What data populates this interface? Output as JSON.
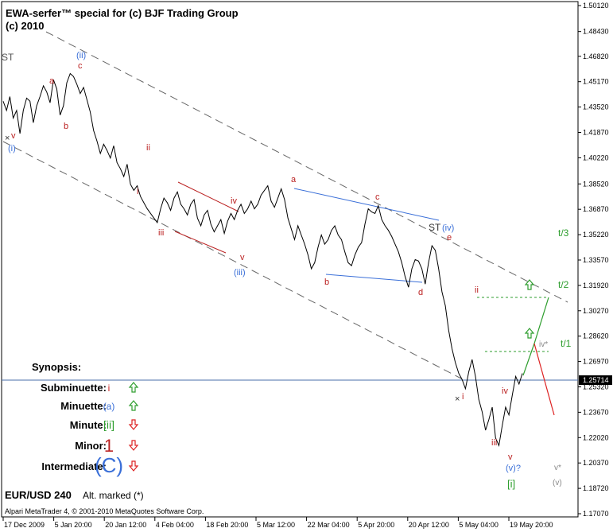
{
  "header": {
    "title_line1": "EWA-serfer™ special for (c) BJF Trading Group",
    "title_line2": "(c) 2010"
  },
  "footer": {
    "instrument": "EUR/USD 240",
    "alt_marked": "Alt. marked (*)",
    "copyright": "Alpari MetaTrader 4, © 2001-2010 MetaQuotes Software Corp."
  },
  "synopsis": {
    "heading": "Synopsis:",
    "rows": [
      {
        "label": "Subminuette:",
        "symbol": "i",
        "symbol_color": "#cc2222",
        "arrow": "up",
        "arrow_color": "#2e9e2e"
      },
      {
        "label": "Minuette:",
        "symbol": "(a)",
        "symbol_color": "#3a6fd8",
        "arrow": "up",
        "arrow_color": "#2e9e2e"
      },
      {
        "label": "Minute:",
        "symbol": "[ii]",
        "symbol_color": "#2e9e2e",
        "arrow": "down",
        "arrow_color": "#dd2222"
      },
      {
        "label": "Minor:",
        "symbol": "1",
        "symbol_color": "#bb2222",
        "arrow": "down",
        "arrow_color": "#dd2222"
      },
      {
        "label": "Intermediate:",
        "symbol": "(C)",
        "symbol_color": "#3a6fd8",
        "arrow": "down",
        "arrow_color": "#dd2222"
      }
    ]
  },
  "chart_data": {
    "type": "line",
    "series": [
      {
        "values": [
          1.439,
          1.433,
          1.442,
          1.428,
          1.433,
          1.418,
          1.433,
          1.441,
          1.439,
          1.425,
          1.436,
          1.442,
          1.449,
          1.445,
          1.438,
          1.453,
          1.447,
          1.43,
          1.436,
          1.451,
          1.457,
          1.455,
          1.45,
          1.444,
          1.448,
          1.44,
          1.432,
          1.42,
          1.413,
          1.405,
          1.411,
          1.407,
          1.402,
          1.41,
          1.399,
          1.395,
          1.39,
          1.398,
          1.385,
          1.381,
          1.384,
          1.377,
          1.373,
          1.369,
          1.366,
          1.363,
          1.36,
          1.369,
          1.376,
          1.373,
          1.368,
          1.376,
          1.38,
          1.372,
          1.369,
          1.365,
          1.372,
          1.375,
          1.363,
          1.358,
          1.365,
          1.368,
          1.359,
          1.354,
          1.358,
          1.362,
          1.353,
          1.361,
          1.366,
          1.362,
          1.368,
          1.372,
          1.366,
          1.369,
          1.374,
          1.369,
          1.372,
          1.378,
          1.381,
          1.384,
          1.374,
          1.37,
          1.376,
          1.382,
          1.375,
          1.363,
          1.356,
          1.349,
          1.358,
          1.352,
          1.346,
          1.339,
          1.33,
          1.334,
          1.344,
          1.352,
          1.346,
          1.349,
          1.355,
          1.358,
          1.352,
          1.349,
          1.341,
          1.334,
          1.332,
          1.339,
          1.344,
          1.347,
          1.359,
          1.369,
          1.367,
          1.366,
          1.371,
          1.362,
          1.358,
          1.355,
          1.351,
          1.346,
          1.341,
          1.334,
          1.325,
          1.318,
          1.33,
          1.336,
          1.335,
          1.33,
          1.32,
          1.334,
          1.345,
          1.342,
          1.33,
          1.315,
          1.306,
          1.29,
          1.278,
          1.269,
          1.262,
          1.258,
          1.252,
          1.263,
          1.271,
          1.26,
          1.245,
          1.237,
          1.225,
          1.232,
          1.24,
          1.22,
          1.215,
          1.228,
          1.24,
          1.235,
          1.248,
          1.26,
          1.255,
          1.262
        ]
      }
    ],
    "x_labels": [
      "17 Dec 2009",
      "5 Jan 20:00",
      "20 Jan 12:00",
      "4 Feb 04:00",
      "18 Feb 20:00",
      "5 Mar 12:00",
      "22 Mar 04:00",
      "5 Apr 20:00",
      "20 Apr 12:00",
      "5 May 04:00",
      "19 May 20:00"
    ],
    "y_ticks": [
      "1.50120",
      "1.48430",
      "1.46820",
      "1.45170",
      "1.43520",
      "1.41870",
      "1.40220",
      "1.38520",
      "1.36870",
      "1.35220",
      "1.33570",
      "1.31920",
      "1.30270",
      "1.28620",
      "1.26970",
      "1.25320",
      "1.23670",
      "1.22020",
      "1.20370",
      "1.18720",
      "1.17070"
    ],
    "ylim": [
      1.1707,
      1.5012
    ],
    "last_price": "1.25714",
    "last_value": 1.25714,
    "annotations": {
      "wave_labels_red": [
        "a",
        "b",
        "c",
        "ii",
        "i",
        "iii",
        "iv",
        "v",
        "a",
        "b",
        "c",
        "d",
        "e",
        "ii",
        "iii",
        "iv",
        "v",
        "i"
      ],
      "wave_labels_blue": [
        "(ii)",
        "(i)",
        "(iii)",
        "(iv)",
        "(v)?"
      ],
      "wave_label_green": "[i]",
      "gray_labels": [
        "ST",
        "ST",
        "iv*",
        "v*",
        "(v)"
      ],
      "targets": [
        "t/3",
        "t/2",
        "t/1"
      ],
      "marker": "×"
    },
    "grid": false,
    "legend": "none"
  }
}
